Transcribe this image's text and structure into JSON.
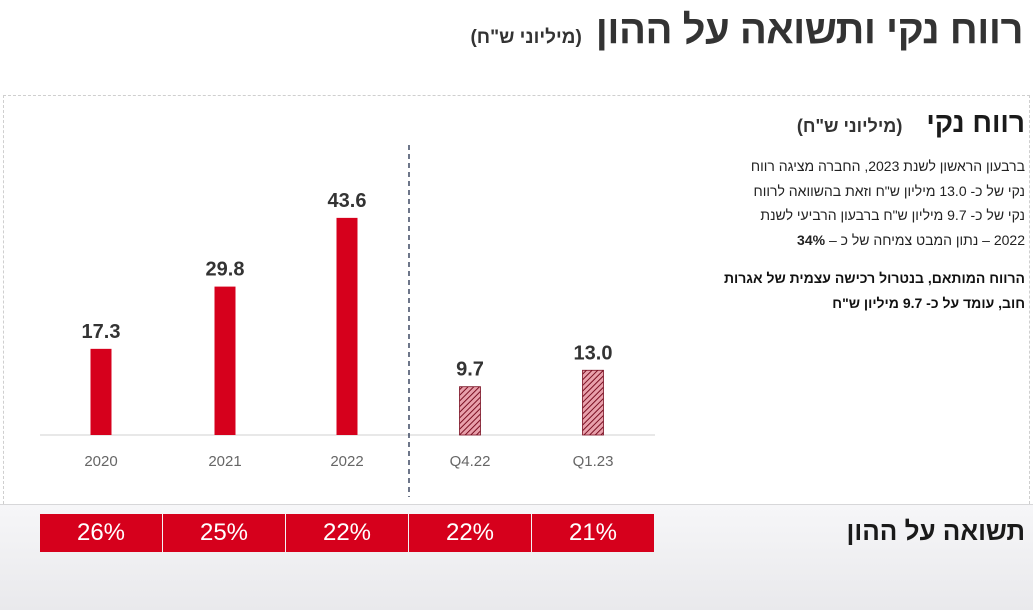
{
  "header": {
    "title": "רווח נקי ותשואה על ההון",
    "unit": "(מיליוני ש\"ח)"
  },
  "net_profit": {
    "title": "רווח נקי",
    "unit": "(מיליוני ש\"ח)",
    "description_lines": [
      "ברבעון הראשון לשנת 2023, החברה מציגה רווח",
      "נקי של כ- 13.0 מיליון ש\"ח וזאת בהשוואה לרווח",
      "נקי של כ- 9.7 מיליון ש\"ח ברבעון הרביעי לשנת"
    ],
    "description_last_prefix": "2022 – נתון המבט צמיחה של כ – ",
    "description_last_strong": "34%",
    "note_lines": [
      "הרווח המותאם, בנטרול רכישה עצמית של אגרות",
      "חוב, עומד על כ- 9.7 מיליון ש\"ח"
    ]
  },
  "roe": {
    "title": "תשואה על ההון",
    "values": [
      "26%",
      "25%",
      "22%",
      "22%",
      "21%"
    ]
  },
  "colors": {
    "bar_solid": "#d6001c",
    "bar_hatched_light": "#e8a0ab",
    "bar_hatched_dark": "#7a0f22",
    "roe_cell": "#d6001c"
  },
  "chart_data": {
    "type": "bar",
    "categories": [
      "2020",
      "2021",
      "2022",
      "Q4.22",
      "Q1.23"
    ],
    "values": [
      17.3,
      29.8,
      43.6,
      9.7,
      13.0
    ],
    "data_labels": [
      "17.3",
      "29.8",
      "43.6",
      "9.7",
      "13.0"
    ],
    "bar_styles": [
      "solid",
      "solid",
      "solid",
      "hatched",
      "hatched"
    ],
    "ylim": [
      0,
      50
    ],
    "grid": false,
    "divider_after_category": "2022"
  }
}
